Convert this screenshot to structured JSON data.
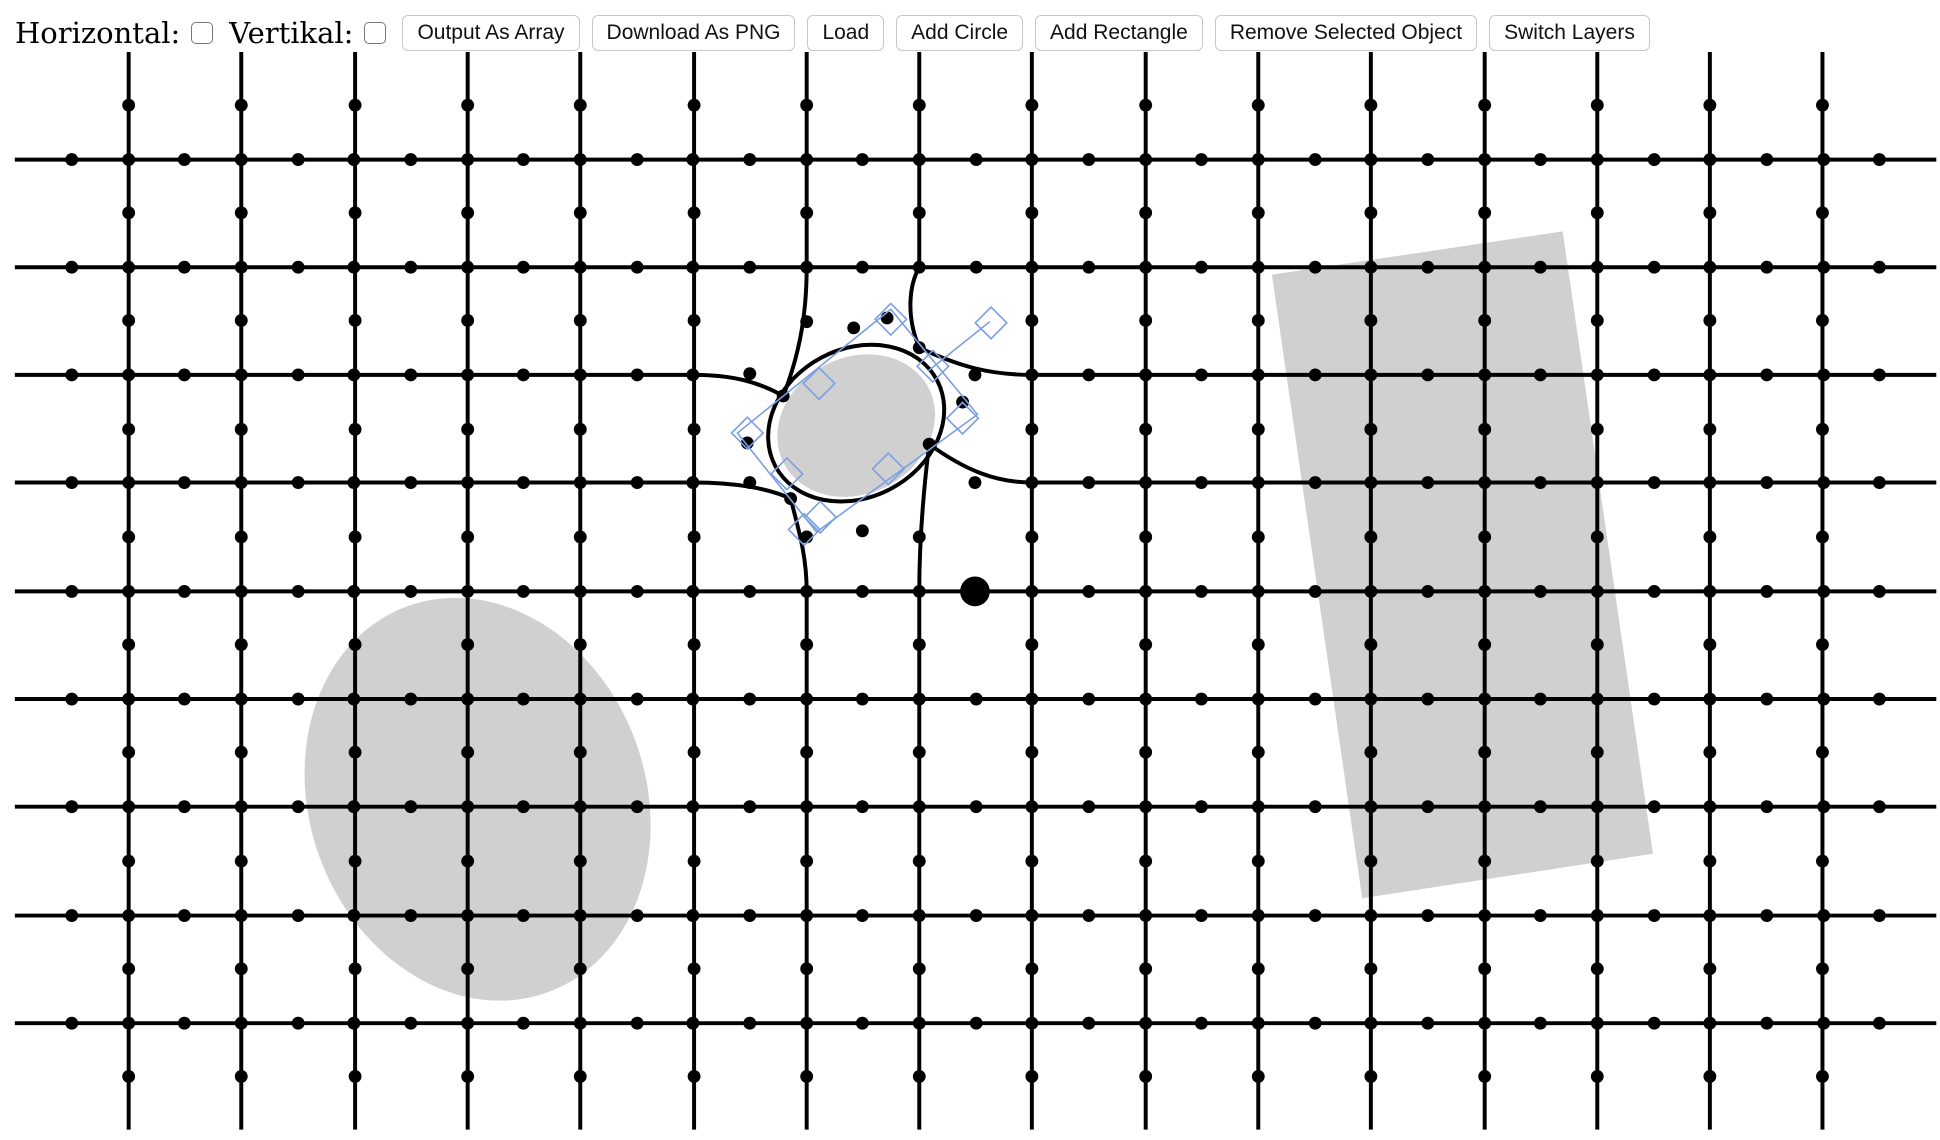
{
  "toolbar": {
    "horizontal_label": "Horizontal:",
    "horizontal_checked": false,
    "vertical_label": "Vertikal:",
    "vertical_checked": false,
    "buttons": {
      "output_array": "Output As Array",
      "download_png": "Download As PNG",
      "load": "Load",
      "add_circle": "Add Circle",
      "add_rectangle": "Add Rectangle",
      "remove_selected": "Remove Selected Object",
      "switch_layers": "Switch Layers"
    }
  },
  "canvas": {
    "colors": {
      "grid": "#000000",
      "shape_fill": "#d0d0d0",
      "selection": "#7b9fe0",
      "background": "#ffffff"
    },
    "objects": [
      {
        "type": "ellipse",
        "name": "left-ellipse",
        "selected": false
      },
      {
        "type": "rectangle",
        "name": "right-rectangle",
        "selected": false
      },
      {
        "type": "circle",
        "name": "center-small-circle",
        "selected": true
      }
    ]
  }
}
